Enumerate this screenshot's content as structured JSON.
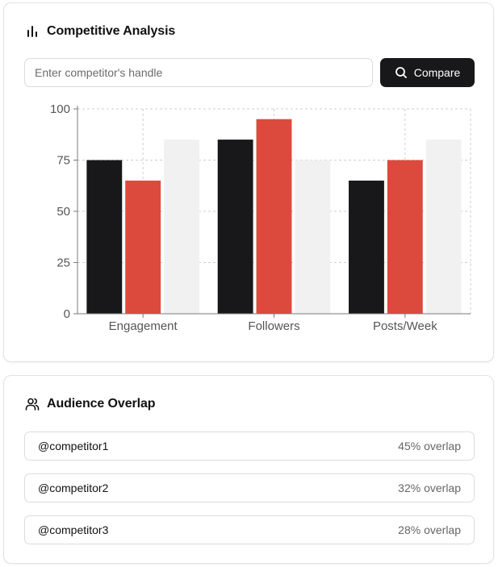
{
  "competitive": {
    "title": "Competitive Analysis",
    "icon": "bar-chart-icon",
    "search_placeholder": "Enter competitor's handle",
    "search_value": "",
    "compare_label": "Compare",
    "compare_icon": "search-icon"
  },
  "chart_data": {
    "type": "bar",
    "categories": [
      "Engagement",
      "Followers",
      "Posts/Week"
    ],
    "series": [
      {
        "values": [
          75,
          85,
          65
        ],
        "color": "#18181b"
      },
      {
        "values": [
          65,
          95,
          75
        ],
        "color": "#dc4a3d"
      },
      {
        "values": [
          85,
          75,
          85
        ],
        "color": "#f1f1f1"
      }
    ],
    "yticks": [
      0,
      25,
      50,
      75,
      100
    ],
    "ylim": [
      0,
      100
    ],
    "grid": true,
    "legend": "none"
  },
  "audience": {
    "title": "Audience Overlap",
    "icon": "users-icon",
    "items": [
      {
        "handle": "@competitor1",
        "overlap": "45% overlap"
      },
      {
        "handle": "@competitor2",
        "overlap": "32% overlap"
      },
      {
        "handle": "@competitor3",
        "overlap": "28% overlap"
      }
    ]
  },
  "colors": {
    "primary": "#18181b",
    "accent": "#dc4a3d",
    "muted": "#f1f1f1",
    "border": "#dcdcdc"
  }
}
